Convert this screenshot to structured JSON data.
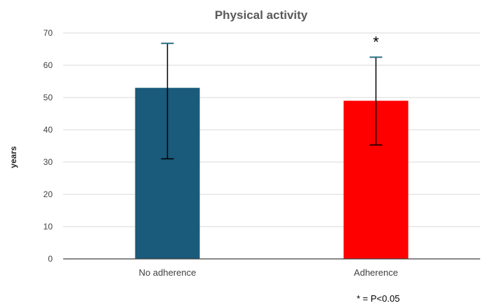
{
  "chart_data": {
    "type": "bar",
    "title": "Physical activity",
    "xlabel": "",
    "ylabel": "years",
    "categories": [
      "No adherence",
      "Adherence"
    ],
    "values": [
      53,
      49
    ],
    "error_bars": [
      {
        "low": 31,
        "high": 66.8
      },
      {
        "low": 35.3,
        "high": 62.5
      }
    ],
    "colors": [
      "#1a5a7a",
      "#ff0000"
    ],
    "ylim": [
      0,
      70
    ],
    "yticks": [
      0,
      10,
      20,
      30,
      40,
      50,
      60,
      70
    ],
    "grid": true,
    "legend": "none",
    "annotations": {
      "significance_marker": "*",
      "significance_category": "Adherence",
      "footnote": "* = P<0.05"
    }
  }
}
